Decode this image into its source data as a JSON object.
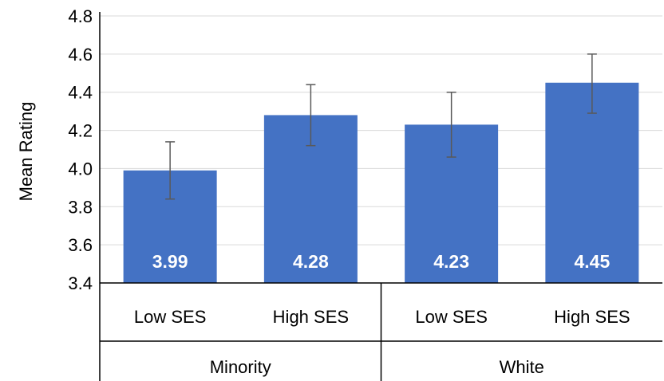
{
  "chart_data": {
    "type": "bar",
    "title": "",
    "xlabel": "",
    "ylabel": "Mean Rating",
    "ylim": [
      3.4,
      4.8
    ],
    "yticks": [
      "3.4",
      "3.6",
      "3.8",
      "4.0",
      "4.2",
      "4.4",
      "4.6",
      "4.8"
    ],
    "grid": true,
    "bar_color": "#4472C4",
    "categories": [
      "Low SES",
      "High SES",
      "Low SES",
      "High SES"
    ],
    "groups": [
      {
        "label": "Minority",
        "span": 2
      },
      {
        "label": "White",
        "span": 2
      }
    ],
    "values": [
      3.99,
      4.28,
      4.23,
      4.45
    ],
    "data_labels": [
      "3.99",
      "4.28",
      "4.23",
      "4.45"
    ],
    "error_bars": [
      {
        "low": 3.84,
        "high": 4.14
      },
      {
        "low": 4.12,
        "high": 4.44
      },
      {
        "low": 4.06,
        "high": 4.4
      },
      {
        "low": 4.29,
        "high": 4.6
      }
    ]
  }
}
